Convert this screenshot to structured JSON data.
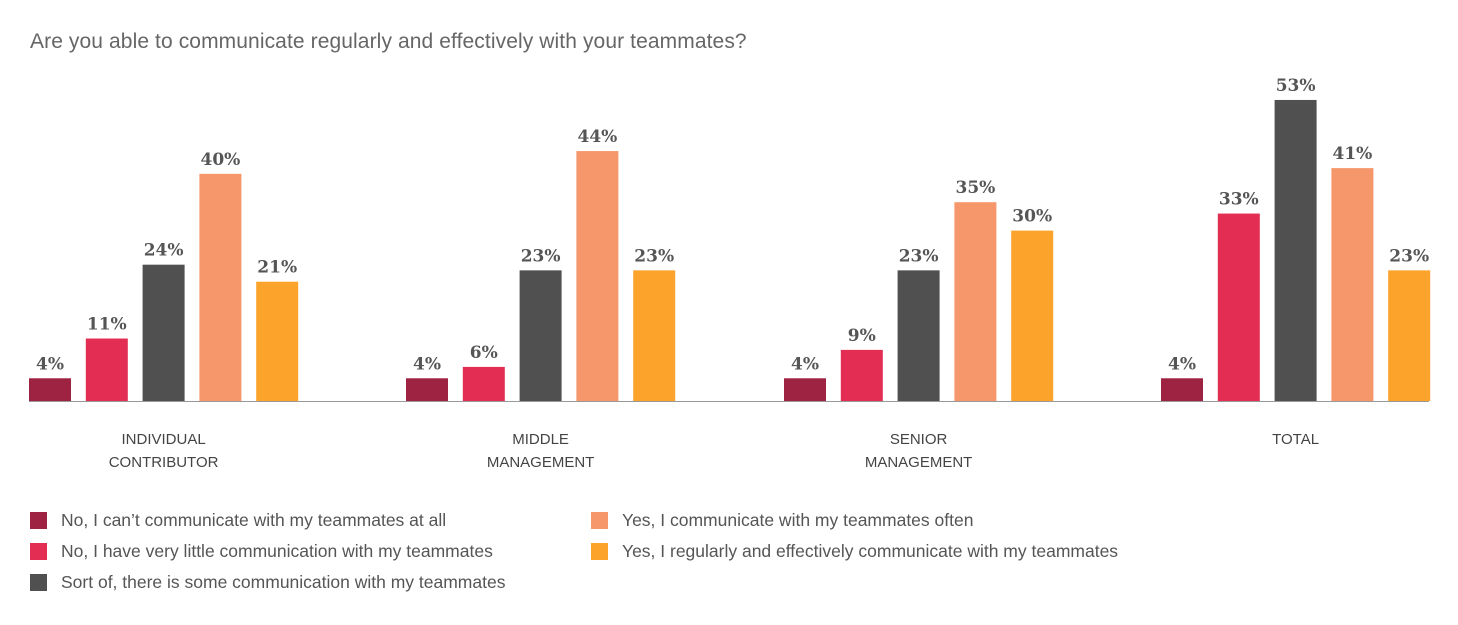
{
  "chart_data": {
    "type": "bar",
    "title": "Are you able to communicate regularly and effectively with your teammates?",
    "categories": [
      [
        "INDIVIDUAL",
        "CONTRIBUTOR"
      ],
      [
        "MIDDLE",
        "MANAGEMENT"
      ],
      [
        "SENIOR",
        "MANAGEMENT"
      ],
      [
        "TOTAL"
      ]
    ],
    "series": [
      {
        "name": "No, I can’t communicate with my teammates at all",
        "color": "#9E2241",
        "values": [
          4,
          4,
          4,
          4
        ]
      },
      {
        "name": "No, I have very little communication with my teammates",
        "color": "#E32D53",
        "values": [
          11,
          6,
          9,
          33
        ]
      },
      {
        "name": "Sort of, there is some communication with my teammates",
        "color": "#505050",
        "values": [
          24,
          23,
          23,
          53
        ]
      },
      {
        "name": "Yes, I communicate with my teammates often",
        "color": "#F5976A",
        "values": [
          40,
          44,
          35,
          41
        ]
      },
      {
        "name": "Yes, I regularly and effectively communicate with my teammates",
        "color": "#FBA32A",
        "values": [
          21,
          23,
          30,
          23
        ]
      }
    ],
    "value_suffix": "%",
    "ylim": [
      0,
      60
    ],
    "grid": false,
    "legend_position": "bottom"
  }
}
